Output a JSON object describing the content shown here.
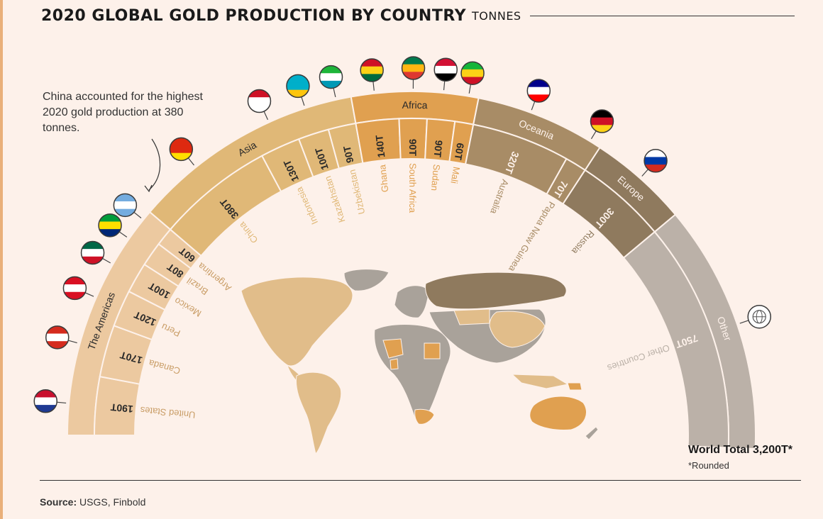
{
  "page": {
    "title": "2020 GLOBAL GOLD PRODUCTION BY COUNTRY",
    "unit": "TONNES",
    "callout": "China accounted for the highest 2020 gold production at 380 tonnes.",
    "source_label": "Source:",
    "source_text": "USGS, Finbold",
    "world_label": "World",
    "total_label": "Total 3,200T*",
    "footnote": "*Rounded"
  },
  "colors": {
    "background": "#fdf1ea",
    "americas": "#ecc9a0",
    "asia": "#e0b877",
    "africa": "#e0a050",
    "oceania": "#a88c66",
    "europe": "#8f7a5e",
    "other": "#bbb1a8"
  },
  "chart_data": {
    "type": "semicircular stacked bar (sunburst)",
    "total": 3200,
    "unit": "tonnes",
    "regions": [
      {
        "name": "The Americas",
        "countries": [
          {
            "name": "United States",
            "value": 190,
            "label": "190T",
            "flag": "usa-flag-icon"
          },
          {
            "name": "Canada",
            "value": 170,
            "label": "170T",
            "flag": "canada-flag-icon"
          },
          {
            "name": "Peru",
            "value": 120,
            "label": "120T",
            "flag": "peru-flag-icon"
          },
          {
            "name": "Mexico",
            "value": 100,
            "label": "100T",
            "flag": "mexico-flag-icon"
          },
          {
            "name": "Brazil",
            "value": 80,
            "label": "80T",
            "flag": "brazil-flag-icon"
          },
          {
            "name": "Argentina",
            "value": 60,
            "label": "60T",
            "flag": "argentina-flag-icon"
          }
        ]
      },
      {
        "name": "Asia",
        "countries": [
          {
            "name": "China",
            "value": 380,
            "label": "380T",
            "flag": "china-flag-icon"
          },
          {
            "name": "Indonesia",
            "value": 130,
            "label": "130T",
            "flag": "indonesia-flag-icon"
          },
          {
            "name": "Kazakhstan",
            "value": 100,
            "label": "100T",
            "flag": "kazakhstan-flag-icon"
          },
          {
            "name": "Uzbekistan",
            "value": 90,
            "label": "90T",
            "flag": "uzbekistan-flag-icon"
          }
        ]
      },
      {
        "name": "Africa",
        "countries": [
          {
            "name": "Ghana",
            "value": 140,
            "label": "140T",
            "flag": "ghana-flag-icon"
          },
          {
            "name": "South Africa",
            "value": 90,
            "label": "90T",
            "flag": "south-africa-flag-icon"
          },
          {
            "name": "Sudan",
            "value": 90,
            "label": "90T",
            "flag": "sudan-flag-icon"
          },
          {
            "name": "Mali",
            "value": 60,
            "label": "60T",
            "flag": "mali-flag-icon"
          }
        ]
      },
      {
        "name": "Oceania",
        "countries": [
          {
            "name": "Australia",
            "value": 320,
            "label": "320T",
            "flag": "australia-flag-icon"
          },
          {
            "name": "Papua New Guinea",
            "value": 70,
            "label": "70T",
            "flag": "png-flag-icon"
          }
        ]
      },
      {
        "name": "Europe",
        "countries": [
          {
            "name": "Russia",
            "value": 300,
            "label": "300T",
            "flag": "russia-flag-icon"
          }
        ]
      },
      {
        "name": "Other",
        "countries": [
          {
            "name": "Other Countries",
            "value": 750,
            "label": "750T",
            "flag": "globe-icon"
          }
        ]
      }
    ]
  }
}
